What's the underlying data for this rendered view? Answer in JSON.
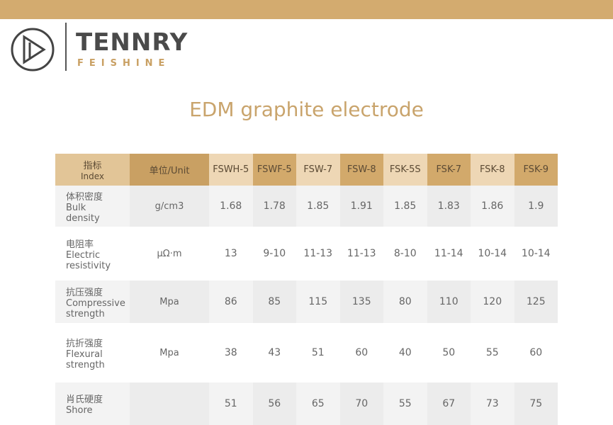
{
  "brand": {
    "name": "TENNRY",
    "sub": "FEISHINE"
  },
  "title": "EDM graphite electrode",
  "table": {
    "header": [
      [
        "指标",
        "Index"
      ],
      [
        "单位/Unit"
      ],
      [
        "FSWH-5"
      ],
      [
        "FSWF-5"
      ],
      [
        "FSW-7"
      ],
      [
        "FSW-8"
      ],
      [
        "FSK-5S"
      ],
      [
        "FSK-7"
      ],
      [
        "FSK-8"
      ],
      [
        "FSK-9"
      ]
    ],
    "rows": [
      {
        "zh": "体积密度",
        "en": "Bulk density",
        "unit": "g/cm3",
        "values": [
          "1.68",
          "1.78",
          "1.85",
          "1.91",
          "1.85",
          "1.83",
          "1.86",
          "1.9"
        ]
      },
      {
        "zh": "电阻率",
        "en": "Electric resistivity",
        "unit": "μΩ·m",
        "values": [
          "13",
          "9-10",
          "11-13",
          "11-13",
          "8-10",
          "11-14",
          "10-14",
          "10-14"
        ]
      },
      {
        "zh": "抗压强度",
        "en": "Compressive strength",
        "unit": "Mpa",
        "values": [
          "86",
          "85",
          "115",
          "135",
          "80",
          "110",
          "120",
          "125"
        ]
      },
      {
        "zh": "抗折强度",
        "en": "Flexural strength",
        "unit": "Mpa",
        "values": [
          "38",
          "43",
          "51",
          "60",
          "40",
          "50",
          "55",
          "60"
        ]
      },
      {
        "zh": "肖氏硬度",
        "en": "Shore",
        "unit": "",
        "values": [
          "51",
          "56",
          "65",
          "70",
          "55",
          "67",
          "73",
          "75"
        ]
      }
    ]
  }
}
